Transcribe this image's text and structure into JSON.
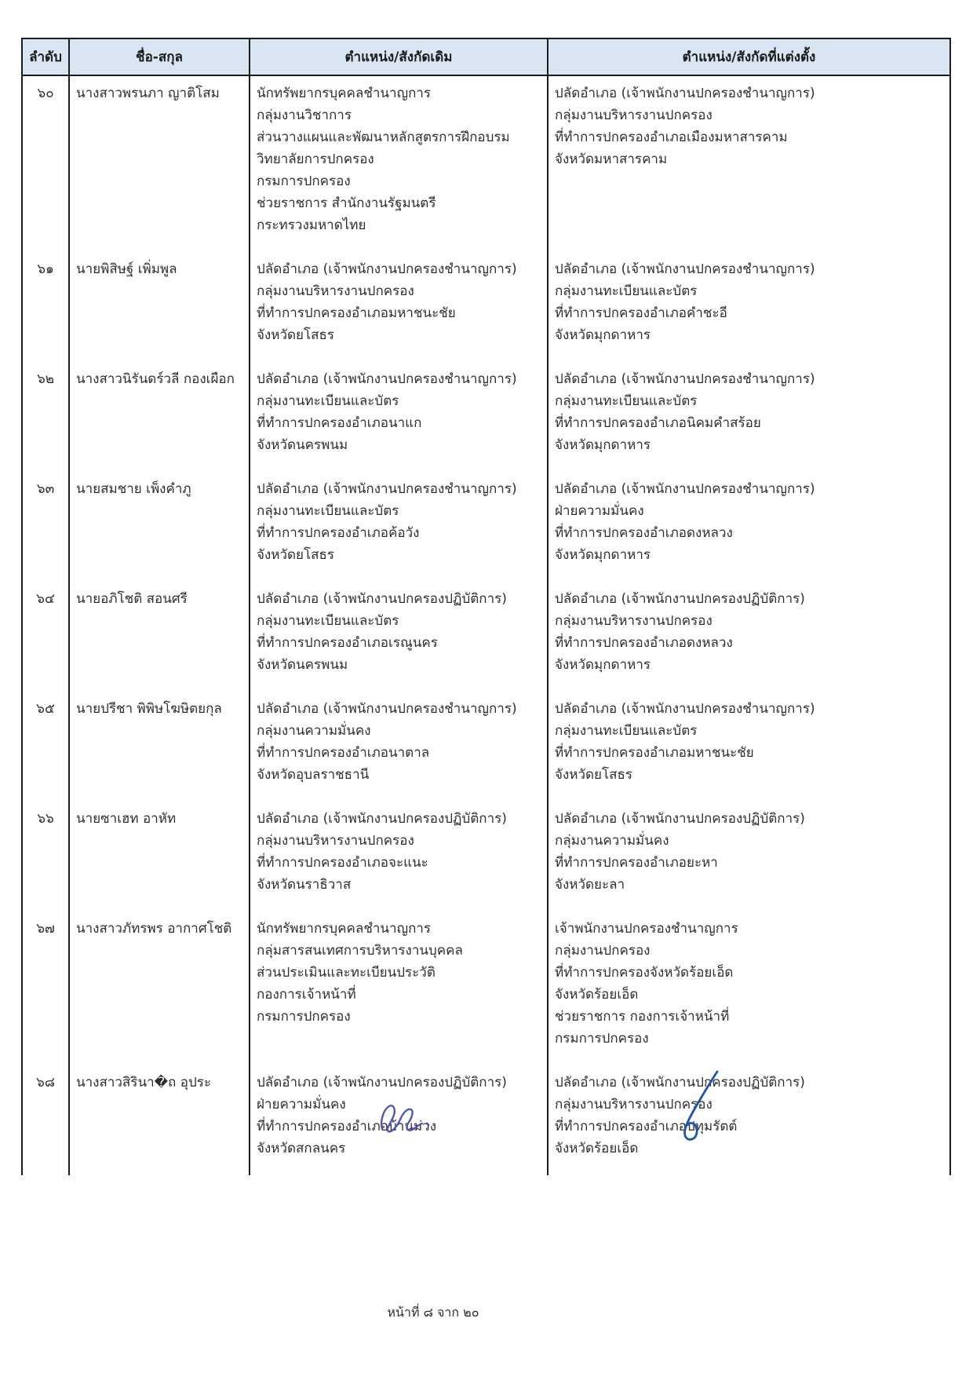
{
  "document": {
    "footer": "หน้าที่ ๘ จาก ๒๐"
  },
  "colors": {
    "header_bg": "#d9e5f2",
    "table_border": "#1c1c1c",
    "text": "#2e2e2e",
    "signature_ink_left": "#4d58b8",
    "signature_ink_right": "#1f55a8"
  },
  "icons": {
    "signature_left": "handwritten-scribble",
    "signature_right": "handwritten-flourish"
  },
  "table": {
    "headers": [
      "ลำดับ",
      "ชื่อ-สกุล",
      "ตำแหน่ง/สังกัดเดิม",
      "ตำแหน่ง/สังกัดที่แต่งตั้ง"
    ],
    "rows": [
      {
        "no": "๖๐",
        "name": "นางสาวพรนภา ญาติโสม",
        "from": [
          "นักทรัพยากรบุคคลชำนาญการ",
          "กลุ่มงานวิชาการ",
          "ส่วนวางแผนและพัฒนาหลักสูตรการฝึกอบรม",
          "วิทยาลัยการปกครอง",
          "กรมการปกครอง",
          "ช่วยราชการ สำนักงานรัฐมนตรี",
          "กระทรวงมหาดไทย"
        ],
        "to": [
          "ปลัดอำเภอ (เจ้าพนักงานปกครองชำนาญการ)",
          "กลุ่มงานบริหารงานปกครอง",
          "ที่ทำการปกครองอำเภอเมืองมหาสารคาม",
          "จังหวัดมหาสารคาม"
        ]
      },
      {
        "no": "๖๑",
        "name": "นายพิสิษฐ์ เพิ่มพูล",
        "from": [
          "ปลัดอำเภอ (เจ้าพนักงานปกครองชำนาญการ)",
          "กลุ่มงานบริหารงานปกครอง",
          "ที่ทำการปกครองอำเภอมหาชนะชัย",
          "จังหวัดยโสธร"
        ],
        "to": [
          "ปลัดอำเภอ (เจ้าพนักงานปกครองชำนาญการ)",
          "กลุ่มงานทะเบียนและบัตร",
          "ที่ทำการปกครองอำเภอคำชะอี",
          "จังหวัดมุกดาหาร"
        ]
      },
      {
        "no": "๖๒",
        "name": "นางสาวนิรันดร์วลี กองเผือก",
        "from": [
          "ปลัดอำเภอ (เจ้าพนักงานปกครองชำนาญการ)",
          "กลุ่มงานทะเบียนและบัตร",
          "ที่ทำการปกครองอำเภอนาแก",
          "จังหวัดนครพนม"
        ],
        "to": [
          "ปลัดอำเภอ (เจ้าพนักงานปกครองชำนาญการ)",
          "กลุ่มงานทะเบียนและบัตร",
          "ที่ทำการปกครองอำเภอนิคมคำสร้อย",
          "จังหวัดมุกดาหาร"
        ]
      },
      {
        "no": "๖๓",
        "name": "นายสมชาย เพ็งคำภู",
        "from": [
          "ปลัดอำเภอ (เจ้าพนักงานปกครองชำนาญการ)",
          "กลุ่มงานทะเบียนและบัตร",
          "ที่ทำการปกครองอำเภอค้อวัง",
          "จังหวัดยโสธร"
        ],
        "to": [
          "ปลัดอำเภอ (เจ้าพนักงานปกครองชำนาญการ)",
          "ฝ่ายความมั่นคง",
          "ที่ทำการปกครองอำเภอดงหลวง",
          "จังหวัดมุกดาหาร"
        ]
      },
      {
        "no": "๖๔",
        "name": "นายอภิโชติ สอนศรี",
        "from": [
          "ปลัดอำเภอ (เจ้าพนักงานปกครองปฏิบัติการ)",
          "กลุ่มงานทะเบียนและบัตร",
          "ที่ทำการปกครองอำเภอเรณูนคร",
          "จังหวัดนครพนม"
        ],
        "to": [
          "ปลัดอำเภอ (เจ้าพนักงานปกครองปฏิบัติการ)",
          "กลุ่มงานบริหารงานปกครอง",
          "ที่ทำการปกครองอำเภอดงหลวง",
          "จังหวัดมุกดาหาร"
        ]
      },
      {
        "no": "๖๕",
        "name": "นายปรีชา พิพิษโฆษิตยกุล",
        "from": [
          "ปลัดอำเภอ (เจ้าพนักงานปกครองชำนาญการ)",
          "กลุ่มงานความมั่นคง",
          "ที่ทำการปกครองอำเภอนาตาล",
          "จังหวัดอุบลราชธานี"
        ],
        "to": [
          "ปลัดอำเภอ (เจ้าพนักงานปกครองชำนาญการ)",
          "กลุ่มงานทะเบียนและบัตร",
          "ที่ทำการปกครองอำเภอมหาชนะชัย",
          "จังหวัดยโสธร"
        ]
      },
      {
        "no": "๖๖",
        "name": "นายซาเฮท อาหัท",
        "from": [
          "ปลัดอำเภอ (เจ้าพนักงานปกครองปฏิบัติการ)",
          "กลุ่มงานบริหารงานปกครอง",
          "ที่ทำการปกครองอำเภอจะแนะ",
          "จังหวัดนราธิวาส"
        ],
        "to": [
          "ปลัดอำเภอ (เจ้าพนักงานปกครองปฏิบัติการ)",
          "กลุ่มงานความมั่นคง",
          "ที่ทำการปกครองอำเภอยะหา",
          "จังหวัดยะลา"
        ]
      },
      {
        "no": "๖๗",
        "name": "นางสาวภัทรพร อากาศโชติ",
        "from": [
          "นักทรัพยากรบุคคลชำนาญการ",
          "กลุ่มสารสนเทศการบริหารงานบุคคล",
          "ส่วนประเมินและทะเบียนประวัติ",
          "กองการเจ้าหน้าที่",
          "กรมการปกครอง"
        ],
        "to": [
          "เจ้าพนักงานปกครองชำนาญการ",
          "กลุ่มงานปกครอง",
          "ที่ทำการปกครองจังหวัดร้อยเอ็ด",
          "จังหวัดร้อยเอ็ด",
          "ช่วยราชการ กองการเจ้าหน้าที่",
          "กรมการปกครอง"
        ]
      },
      {
        "no": "๖๘",
        "name": "นางสาวสิรินา�ถ อุประ",
        "from": [
          "ปลัดอำเภอ (เจ้าพนักงานปกครองปฏิบัติการ)",
          "ฝ่ายความมั่นคง",
          "ที่ทำการปกครองอำเภอบ้านม่วง",
          "จังหวัดสกลนคร"
        ],
        "to": [
          "ปลัดอำเภอ (เจ้าพนักงานปกครองปฏิบัติการ)",
          "กลุ่มงานบริหารงานปกครอง",
          "ที่ทำการปกครองอำเภอปทุมรัตต์",
          "จังหวัดร้อยเอ็ด"
        ]
      }
    ]
  }
}
